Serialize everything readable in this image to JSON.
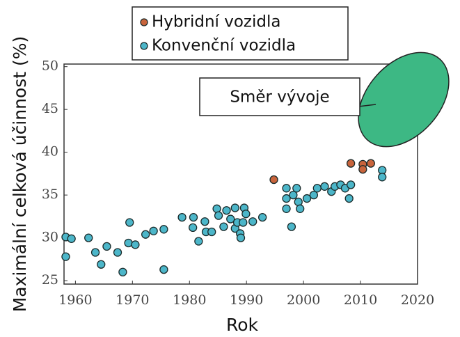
{
  "chart_data": {
    "type": "scatter",
    "x_label": "Rok",
    "y_label": "Maximální celková účinnost (%)",
    "annotation": "Směr vývoje",
    "xlim": [
      1958,
      2020
    ],
    "ylim": [
      24.6,
      50.3
    ],
    "xticks": [
      1960,
      1970,
      1980,
      1990,
      2000,
      2010,
      2020
    ],
    "yticks": [
      25,
      30,
      35,
      40,
      45,
      50
    ],
    "series": [
      {
        "name": "Hybridní vozidla",
        "color": "#c8643c",
        "x": [
          1994.8,
          2008.3,
          2010.4,
          2010.4,
          2011.8
        ],
        "values": [
          36.8,
          38.7,
          38.6,
          38.0,
          38.7
        ]
      },
      {
        "name": "Konvenční vozidla",
        "color": "#4cb6c9",
        "x": [
          1958.3,
          1959.3,
          1958.3,
          1962.3,
          1963.5,
          1964.5,
          1965.5,
          1967.4,
          1968.3,
          1969.5,
          1969.3,
          1970.5,
          1972.3,
          1973.7,
          1975.5,
          1975.5,
          1978.7,
          1980.6,
          1980.7,
          1981.6,
          1982.7,
          1982.9,
          1983.9,
          1984.8,
          1985.1,
          1986.0,
          1986.5,
          1987.2,
          1988.0,
          1988.0,
          1988.4,
          1988.9,
          1989.4,
          1989.6,
          1989.9,
          1989.0,
          1991.1,
          1992.8,
          1997.0,
          1997.0,
          1997.0,
          1997.9,
          1998.2,
          1998.8,
          1999.1,
          1999.4,
          2000.6,
          2001.8,
          2002.4,
          2003.7,
          2004.9,
          2005.5,
          2006.5,
          2007.3,
          2008.0,
          2008.3,
          2013.8,
          2013.8
        ],
        "values": [
          30.1,
          29.9,
          27.8,
          30.0,
          28.3,
          26.9,
          29.0,
          28.3,
          26.0,
          31.8,
          29.4,
          29.2,
          30.4,
          30.8,
          31.0,
          26.3,
          32.4,
          31.2,
          32.4,
          29.6,
          31.9,
          30.7,
          30.7,
          33.4,
          32.6,
          31.3,
          33.2,
          32.2,
          31.1,
          33.5,
          31.8,
          30.5,
          31.8,
          33.5,
          32.8,
          30.0,
          31.9,
          32.4,
          35.8,
          34.6,
          33.4,
          31.3,
          35.0,
          35.8,
          34.2,
          33.4,
          34.6,
          35.0,
          35.8,
          36.0,
          35.4,
          36.0,
          36.2,
          35.8,
          34.6,
          36.2,
          37.9,
          37.1
        ]
      }
    ]
  }
}
